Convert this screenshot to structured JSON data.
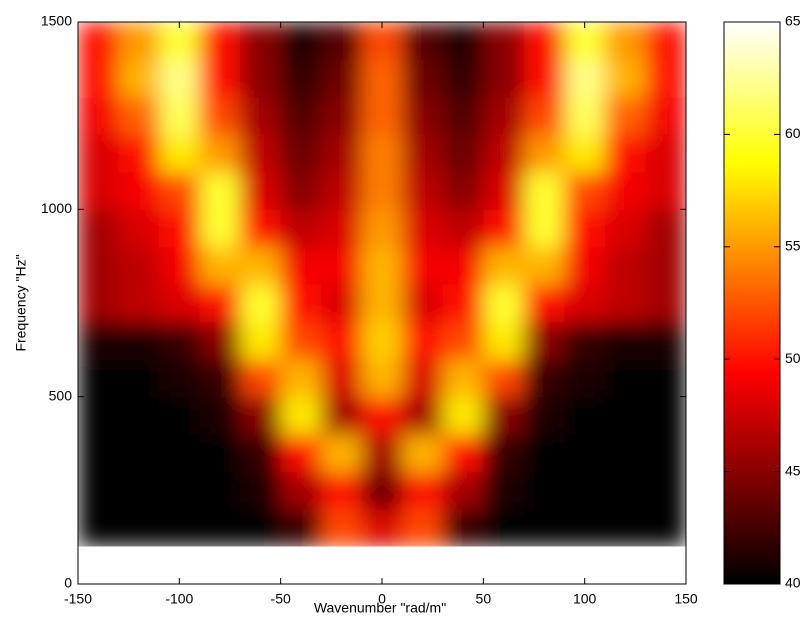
{
  "chart_data": {
    "type": "heatmap",
    "xlabel": "Wavenumber \"rad/m\"",
    "ylabel": "Frequency \"Hz\"",
    "colormap": "hot",
    "x": [
      -140,
      -120,
      -100,
      -80,
      -60,
      -40,
      -20,
      0,
      20,
      40,
      60,
      80,
      100,
      120,
      140
    ],
    "y": [
      150,
      250,
      350,
      450,
      550,
      650,
      750,
      850,
      950,
      1050,
      1150,
      1250,
      1350,
      1450
    ],
    "z": [
      [
        40,
        40,
        40,
        40,
        40,
        42,
        52,
        48,
        52,
        42,
        40,
        40,
        40,
        40,
        40
      ],
      [
        40,
        40,
        40,
        40,
        41,
        46,
        50,
        44,
        50,
        46,
        41,
        40,
        40,
        40,
        40
      ],
      [
        40,
        40,
        40,
        40,
        42,
        50,
        56,
        46,
        56,
        50,
        42,
        40,
        40,
        40,
        40
      ],
      [
        40,
        40,
        40,
        41,
        45,
        58,
        46,
        50,
        46,
        58,
        45,
        41,
        40,
        40,
        40
      ],
      [
        40,
        40,
        41,
        42,
        52,
        56,
        48,
        56,
        48,
        56,
        52,
        42,
        41,
        40,
        40
      ],
      [
        41,
        41,
        42,
        45,
        58,
        52,
        50,
        57,
        50,
        52,
        58,
        45,
        42,
        41,
        41
      ],
      [
        46,
        47,
        48,
        50,
        60,
        50,
        48,
        56,
        48,
        50,
        60,
        50,
        48,
        47,
        46
      ],
      [
        46,
        47,
        49,
        56,
        56,
        49,
        49,
        56,
        49,
        49,
        56,
        56,
        49,
        47,
        46
      ],
      [
        46,
        48,
        50,
        60,
        50,
        47,
        48,
        55,
        48,
        47,
        50,
        60,
        50,
        48,
        46
      ],
      [
        48,
        49,
        52,
        60,
        48,
        45,
        47,
        54,
        47,
        45,
        48,
        60,
        52,
        49,
        48
      ],
      [
        48,
        50,
        58,
        55,
        47,
        44,
        46,
        54,
        46,
        44,
        47,
        55,
        58,
        50,
        48
      ],
      [
        49,
        53,
        61,
        52,
        46,
        43,
        45,
        53,
        45,
        43,
        46,
        52,
        61,
        53,
        49
      ],
      [
        50,
        56,
        62,
        50,
        45,
        42,
        44,
        53,
        44,
        42,
        45,
        50,
        62,
        56,
        50
      ],
      [
        50,
        55,
        60,
        50,
        45,
        41,
        43,
        52,
        43,
        41,
        45,
        50,
        60,
        55,
        50
      ]
    ],
    "xlim": [
      -150,
      150
    ],
    "ylim": [
      0,
      1500
    ],
    "xticks": [
      -150,
      -100,
      -50,
      0,
      50,
      100,
      150
    ],
    "yticks": [
      0,
      500,
      1000,
      1500
    ],
    "clim": [
      40,
      65
    ],
    "cticks": [
      40,
      45,
      50,
      55,
      60,
      65
    ]
  }
}
